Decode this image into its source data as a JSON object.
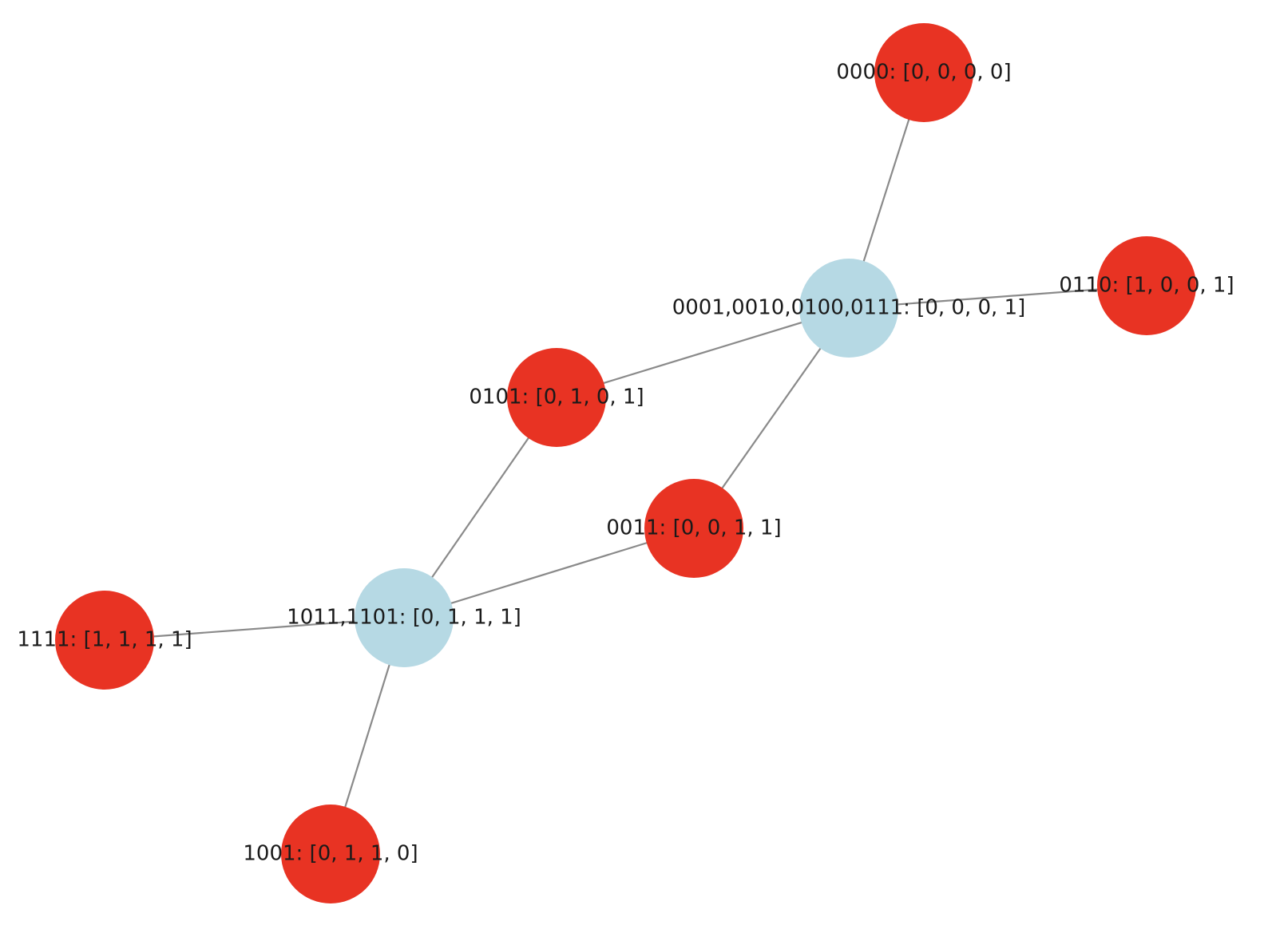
{
  "nodes": [
    {
      "label": "0000: [0, 0, 0, 0]"
    },
    {
      "label": "0001,0010,0100,0111: [0, 0, 0, 1]"
    },
    {
      "label": "0110: [1, 0, 0, 1]"
    },
    {
      "label": "0101: [0, 1, 0, 1]"
    },
    {
      "label": "0011: [0, 0, 1, 1]"
    },
    {
      "label": "1011,1101: [0, 1, 1, 1]"
    },
    {
      "label": "1111: [1, 1, 1, 1]"
    },
    {
      "label": "1001: [0, 1, 1, 0]"
    }
  ]
}
